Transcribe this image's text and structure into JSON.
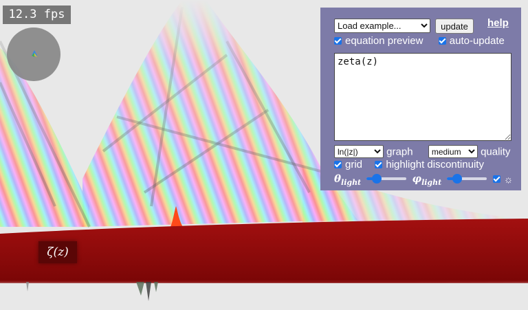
{
  "hud": {
    "fps_text": "12.3 fps"
  },
  "graph": {
    "function_label": "ζ(z)"
  },
  "panel": {
    "example_select": {
      "selected": "Load example..."
    },
    "update_label": "update",
    "help_label": "help",
    "equation_preview": {
      "label": "equation preview",
      "checked": true
    },
    "auto_update": {
      "label": "auto-update",
      "checked": true
    },
    "equation_text": "zeta(z)",
    "graph_mode": {
      "selected": "ln(|z|)",
      "label": "graph"
    },
    "quality": {
      "selected": "medium",
      "label": "quality"
    },
    "grid": {
      "label": "grid",
      "checked": true
    },
    "highlight_discontinuity": {
      "label": "highlight discontinuity",
      "checked": true
    },
    "theta_light": {
      "symbol": "θ",
      "subscript": "light",
      "value": 0.25
    },
    "phi_light": {
      "symbol": "φ",
      "subscript": "light",
      "value": 0.25
    },
    "light_toggle": {
      "checked": true,
      "icon": "sun-icon",
      "glyph": "☼"
    }
  },
  "colors": {
    "panel_bg": "#7d7ba8",
    "surface_base": "#8b0a0a",
    "accent": "#1a73e8"
  }
}
